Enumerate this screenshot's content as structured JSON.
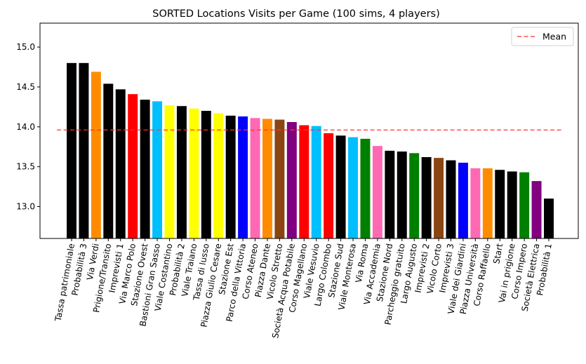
{
  "chart_data": {
    "type": "bar",
    "title": "SORTED Locations Visits per Game (100 sims, 4 players)",
    "xlabel": "",
    "ylabel": "",
    "ylim": [
      12.6,
      15.3
    ],
    "yticks": [
      13.0,
      13.5,
      14.0,
      14.5,
      15.0
    ],
    "ytick_labels": [
      "13.0",
      "13.5",
      "14.0",
      "14.5",
      "15.0"
    ],
    "grid": false,
    "legend": {
      "position": "top-right",
      "entries": [
        "Mean"
      ]
    },
    "mean": {
      "label": "Mean",
      "value": 13.96,
      "color": "#ff3333",
      "style": "dashed"
    },
    "categories": [
      "Tassa patrimoniale",
      "Probabilità 3",
      "Via Verdi",
      "Prigione/Transito",
      "Imprevisti 1",
      "Via Marco Polo",
      "Stazione Ovest",
      "Bastioni Gran Sasso",
      "Viale Costantino",
      "Probabilità 2",
      "Viale Traiano",
      "Tassa di lusso",
      "Piazza Giulio Cesare",
      "Stazione Est",
      "Parco della Vittoria",
      "Corso Ateneo",
      "Piazza Dante",
      "Vicolo Stretto",
      "Società Acqua Potabile",
      "Corso Magellano",
      "Viale Vesuvio",
      "Largo Colombo",
      "Stazione Sud",
      "Viale Monterosa",
      "Via Roma",
      "Via Accademia",
      "Stazione Nord",
      "Parcheggio gratuito",
      "Largo Augusto",
      "Imprevisti 2",
      "Vicolo Corto",
      "Imprevisti 3",
      "Viale dei Giardini",
      "Piazza Università",
      "Corso Raffaello",
      "Start",
      "Vai in prigione",
      "Corso Impero",
      "Società Elettrica",
      "Probabilità 1"
    ],
    "values": [
      14.8,
      14.8,
      14.69,
      14.54,
      14.47,
      14.41,
      14.34,
      14.32,
      14.27,
      14.26,
      14.23,
      14.2,
      14.17,
      14.14,
      14.13,
      14.11,
      14.1,
      14.09,
      14.06,
      14.02,
      14.01,
      13.92,
      13.89,
      13.87,
      13.85,
      13.76,
      13.7,
      13.69,
      13.67,
      13.62,
      13.61,
      13.58,
      13.55,
      13.48,
      13.48,
      13.46,
      13.44,
      13.43,
      13.32,
      13.1
    ],
    "colors": [
      "#000000",
      "#000000",
      "#ff8c00",
      "#000000",
      "#000000",
      "#ff0000",
      "#000000",
      "#00bfff",
      "#ffff00",
      "#000000",
      "#ffff00",
      "#000000",
      "#ffff00",
      "#000000",
      "#0000ff",
      "#ff69b4",
      "#ff8c00",
      "#8b4513",
      "#800080",
      "#ff0000",
      "#00bfff",
      "#ff0000",
      "#000000",
      "#00bfff",
      "#008000",
      "#ff69b4",
      "#000000",
      "#000000",
      "#008000",
      "#000000",
      "#8b4513",
      "#000000",
      "#0000ff",
      "#ff69b4",
      "#ff8c00",
      "#000000",
      "#000000",
      "#008000",
      "#800080",
      "#000000"
    ]
  }
}
